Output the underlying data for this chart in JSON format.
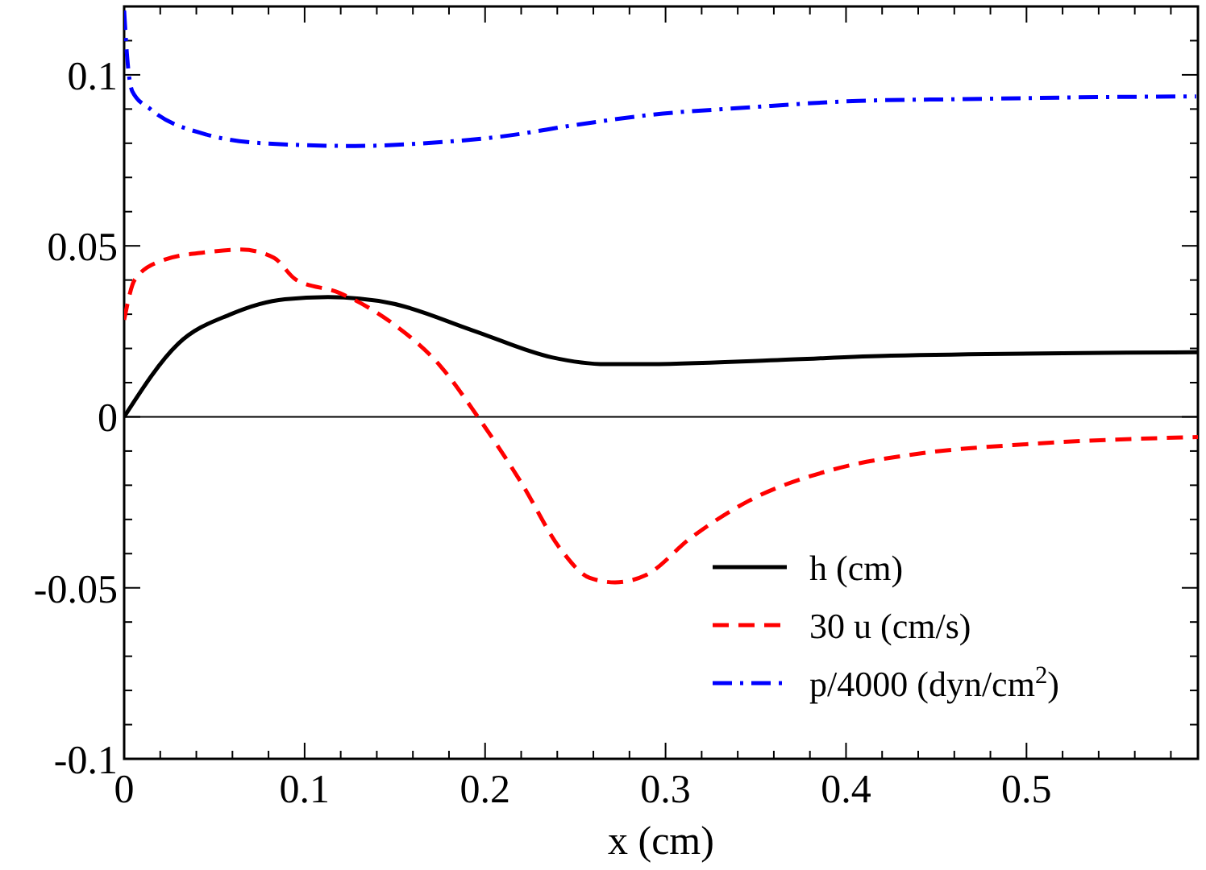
{
  "chart_data": {
    "type": "line",
    "xlabel": "x (cm)",
    "xlim": [
      0,
      0.595
    ],
    "ylim": [
      -0.1,
      0.12
    ],
    "xticks": [
      0,
      {
        "value": 0.02,
        "label": null
      },
      {
        "value": 0.04,
        "label": null
      },
      {
        "value": 0.06,
        "label": null
      },
      {
        "value": 0.08,
        "label": null
      },
      0.1,
      {
        "value": 0.12,
        "label": null
      },
      {
        "value": 0.14,
        "label": null
      },
      {
        "value": 0.16,
        "label": null
      },
      {
        "value": 0.18,
        "label": null
      },
      0.2,
      {
        "value": 0.22,
        "label": null
      },
      {
        "value": 0.24,
        "label": null
      },
      {
        "value": 0.26,
        "label": null
      },
      {
        "value": 0.28,
        "label": null
      },
      0.3,
      {
        "value": 0.32,
        "label": null
      },
      {
        "value": 0.34,
        "label": null
      },
      {
        "value": 0.36,
        "label": null
      },
      {
        "value": 0.38,
        "label": null
      },
      0.4,
      {
        "value": 0.42,
        "label": null
      },
      {
        "value": 0.44,
        "label": null
      },
      {
        "value": 0.46,
        "label": null
      },
      {
        "value": 0.48,
        "label": null
      },
      0.5,
      {
        "value": 0.52,
        "label": null
      },
      {
        "value": 0.54,
        "label": null
      },
      {
        "value": 0.56,
        "label": null
      },
      {
        "value": 0.58,
        "label": null
      }
    ],
    "yticks": [
      -0.1,
      {
        "value": -0.09,
        "label": null
      },
      {
        "value": -0.08,
        "label": null
      },
      {
        "value": -0.07,
        "label": null
      },
      {
        "value": -0.06,
        "label": null
      },
      -0.05,
      {
        "value": -0.04,
        "label": null
      },
      {
        "value": -0.03,
        "label": null
      },
      {
        "value": -0.02,
        "label": null
      },
      {
        "value": -0.01,
        "label": null
      },
      0,
      {
        "value": 0.01,
        "label": null
      },
      {
        "value": 0.02,
        "label": null
      },
      {
        "value": 0.03,
        "label": null
      },
      {
        "value": 0.04,
        "label": null
      },
      0.05,
      {
        "value": 0.06,
        "label": null
      },
      {
        "value": 0.07,
        "label": null
      },
      {
        "value": 0.08,
        "label": null
      },
      {
        "value": 0.09,
        "label": null
      },
      0.1,
      {
        "value": 0.11,
        "label": null
      }
    ],
    "grid": false,
    "legend": "bottom right",
    "marker": "none",
    "ref_lines": [
      {
        "axis": "y",
        "value": 0,
        "color": "#000000"
      }
    ],
    "series": [
      {
        "name": "h (cm)",
        "color": "#000000",
        "line_style": "solid",
        "x": [
          0,
          0.03,
          0.059,
          0.089,
          0.113,
          0.148,
          0.193,
          0.237,
          0.267,
          0.286,
          0.362,
          0.425,
          0.595
        ],
        "values": [
          0,
          0.0214,
          0.03,
          0.0344,
          0.035,
          0.0332,
          0.0253,
          0.0174,
          0.0154,
          0.0154,
          0.0166,
          0.0179,
          0.0189
        ]
      },
      {
        "name": "30 u (cm/s)",
        "color": "#ff0000",
        "line_style": "dashed",
        "x": [
          0,
          0.006,
          0.021,
          0.045,
          0.065,
          0.083,
          0.095,
          0.119,
          0.148,
          0.175,
          0.196,
          0.22,
          0.242,
          0.258,
          0.272,
          0.289,
          0.314,
          0.346,
          0.393,
          0.44,
          0.503,
          0.595
        ],
        "values": [
          0.0284,
          0.0402,
          0.0457,
          0.0481,
          0.0489,
          0.0465,
          0.0402,
          0.0363,
          0.0276,
          0.015,
          0,
          -0.0192,
          -0.0388,
          -0.0471,
          -0.0484,
          -0.0463,
          -0.0354,
          -0.0246,
          -0.0154,
          -0.0108,
          -0.0079,
          -0.0059
        ]
      },
      {
        "name": "p/4000 (dyn/cm$^{2}$)",
        "color": "#0000ff",
        "line_style": "dashdot",
        "x": [
          0,
          0.0015,
          0.0045,
          0.015,
          0.0445,
          0.08,
          0.128,
          0.163,
          0.208,
          0.252,
          0.29,
          0.347,
          0.407,
          0.466,
          0.525,
          0.594
        ],
        "values": [
          0.1188,
          0.1063,
          0.0952,
          0.0898,
          0.0827,
          0.0799,
          0.0792,
          0.0799,
          0.0819,
          0.0855,
          0.0882,
          0.0905,
          0.0924,
          0.0929,
          0.0934,
          0.0937
        ]
      }
    ]
  }
}
